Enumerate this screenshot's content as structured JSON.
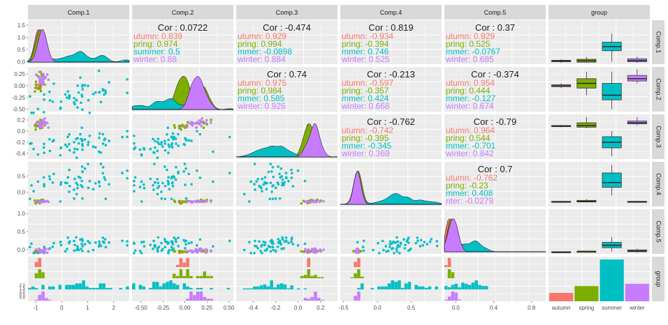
{
  "chart_data": {
    "type": "scatter-matrix",
    "variables": [
      "Comp.1",
      "Comp.2",
      "Comp.3",
      "Comp.4",
      "Comp.5"
    ],
    "extra_column": "group",
    "groups": [
      "autumn",
      "spring",
      "summer",
      "winter"
    ],
    "group_labels": {
      "autumn": "autumn",
      "spring": "spring",
      "summer": "summer",
      "winter": "winter"
    },
    "colors": {
      "autumn": "#F8766D",
      "spring": "#7CAE00",
      "summer": "#00BFC4",
      "winter": "#C77CFF"
    },
    "y_ticks": {
      "Comp.1": [
        "1.5",
        "1.0",
        "0.5",
        "0.0"
      ],
      "Comp.2": [
        "0.25",
        "0.00",
        "-0.25",
        "-0.50"
      ],
      "Comp.3": [
        "0.2",
        "0.0",
        "-0.2",
        "-0.4"
      ],
      "Comp.4": [
        "0.5",
        "0.0"
      ],
      "Comp.5": [
        "1.0",
        "0.5",
        "0.0"
      ]
    },
    "group_row_ticks": [
      "0.0",
      "0.5",
      "1.0",
      "1.5",
      "2.0"
    ],
    "x_ticks": {
      "Comp.1": [
        "-1",
        "0",
        "1",
        "2"
      ],
      "Comp.2": [
        "-0.50",
        "-0.25",
        "0.00",
        "0.25",
        "0.50"
      ],
      "Comp.3": [
        "-0.4",
        "-0.2",
        "0.0",
        "0.2"
      ],
      "Comp.4": [
        "-0.5",
        "0.0",
        "0.5"
      ],
      "Comp.5": [
        "0.0",
        "0.4",
        "0.8"
      ]
    },
    "x_ranges": {
      "Comp.1": [
        -1.3,
        2.6
      ],
      "Comp.2": [
        -0.6,
        0.55
      ],
      "Comp.3": [
        -0.55,
        0.35
      ],
      "Comp.4": [
        -0.55,
        0.95
      ],
      "Comp.5": [
        -0.12,
        0.95
      ]
    },
    "y_ranges": {
      "Comp.1": [
        -0.1,
        1.7
      ],
      "Comp.2": [
        -0.55,
        0.4
      ],
      "Comp.3": [
        -0.5,
        0.3
      ],
      "Comp.4": [
        -0.45,
        0.95
      ],
      "Comp.5": [
        -0.12,
        1.12
      ]
    },
    "correlations": [
      {
        "row": "Comp.1",
        "col": "Comp.2",
        "overall": "Cor : 0.0722",
        "groups": [
          "utumn: 0.839",
          "pring: 0.974",
          "summer: 0.5",
          "winter: 0.88"
        ]
      },
      {
        "row": "Comp.1",
        "col": "Comp.3",
        "overall": "Cor : -0.474",
        "groups": [
          "utumn: 0.929",
          "pring: 0.994",
          "mmer: -0.0898",
          "winter: 0.884"
        ]
      },
      {
        "row": "Comp.1",
        "col": "Comp.4",
        "overall": "Cor : 0.819",
        "groups": [
          "utumn: -0.934",
          "pring: -0.394",
          "mmer: 0.746",
          "winter: 0.525"
        ]
      },
      {
        "row": "Comp.1",
        "col": "Comp.5",
        "overall": "Cor : 0.37",
        "groups": [
          "utumn: 0.929",
          "pring: 0.525",
          "mmer: -0.0767",
          "winter: 0.685"
        ]
      },
      {
        "row": "Comp.2",
        "col": "Comp.3",
        "overall": "Cor : 0.74",
        "groups": [
          "utumn: 0.975",
          "pring: 0.984",
          "mmer: 0.585",
          "winter: 0.926"
        ]
      },
      {
        "row": "Comp.2",
        "col": "Comp.4",
        "overall": "Cor : -0.213",
        "groups": [
          "utumn: -0.597",
          "pring: -0.357",
          "mmer: 0.424",
          "winter: 0.668"
        ]
      },
      {
        "row": "Comp.2",
        "col": "Comp.5",
        "overall": "Cor : -0.374",
        "groups": [
          "utumn: 0.954",
          "pring: 0.444",
          "mmer: -0.127",
          "winter: 0.674"
        ]
      },
      {
        "row": "Comp.3",
        "col": "Comp.4",
        "overall": "Cor : -0.762",
        "groups": [
          "utumn: -0.742",
          "pring: -0.395",
          "mmer: -0.345",
          "winter: 0.369"
        ]
      },
      {
        "row": "Comp.3",
        "col": "Comp.5",
        "overall": "Cor : -0.79",
        "groups": [
          "utumn: 0.964",
          "pring: 0.544",
          "mmer: -0.701",
          "winter: 0.842"
        ]
      },
      {
        "row": "Comp.4",
        "col": "Comp.5",
        "overall": "Cor : 0.7",
        "groups": [
          "utumn: -0.762",
          "pring: -0.23",
          "mmer: 0.408",
          "nter: -0.0279"
        ]
      }
    ],
    "boxplots": {
      "Comp.1": {
        "autumn": [
          -0.05,
          0.0,
          0.03,
          0.06,
          0.1
        ],
        "spring": [
          -0.05,
          -0.02,
          0.04,
          0.1,
          0.2
        ],
        "summer": [
          0.0,
          0.45,
          0.62,
          0.8,
          1.15
        ],
        "winter": [
          -0.05,
          0.0,
          0.05,
          0.12,
          0.2
        ]
      },
      "Comp.2": {
        "autumn": [
          -0.05,
          -0.02,
          0.0,
          0.02,
          0.05
        ],
        "spring": [
          -0.2,
          -0.05,
          0.05,
          0.15,
          0.3
        ],
        "summer": [
          -0.5,
          -0.3,
          -0.2,
          0.05,
          0.3
        ],
        "winter": [
          0.05,
          0.1,
          0.15,
          0.22,
          0.35
        ]
      },
      "Comp.3": {
        "autumn": [
          0.07,
          0.08,
          0.09,
          0.1,
          0.11
        ],
        "spring": [
          0.05,
          0.07,
          0.1,
          0.15,
          0.25
        ],
        "summer": [
          -0.45,
          -0.3,
          -0.2,
          -0.1,
          0.0
        ],
        "winter": [
          0.1,
          0.13,
          0.15,
          0.18,
          0.25
        ]
      },
      "Comp.4": {
        "autumn": [
          -0.32,
          -0.31,
          -0.3,
          -0.29,
          -0.28
        ],
        "spring": [
          -0.33,
          -0.31,
          -0.29,
          -0.26,
          -0.22
        ],
        "summer": [
          -0.1,
          0.15,
          0.3,
          0.6,
          0.85
        ],
        "winter": [
          -0.32,
          -0.31,
          -0.3,
          -0.29,
          -0.28
        ]
      },
      "Comp.5": {
        "autumn": [
          -0.09,
          -0.08,
          -0.07,
          -0.06,
          -0.05
        ],
        "spring": [
          -0.07,
          -0.06,
          -0.05,
          -0.05,
          -0.04
        ],
        "summer": [
          -0.05,
          0.05,
          0.12,
          0.2,
          0.35
        ],
        "winter": [
          -0.08,
          -0.06,
          -0.04,
          -0.01,
          0.03
        ]
      }
    },
    "group_counts": {
      "autumn": 11,
      "spring": 20,
      "summer": 55,
      "winter": 23
    },
    "legend": "none",
    "grid": true
  }
}
